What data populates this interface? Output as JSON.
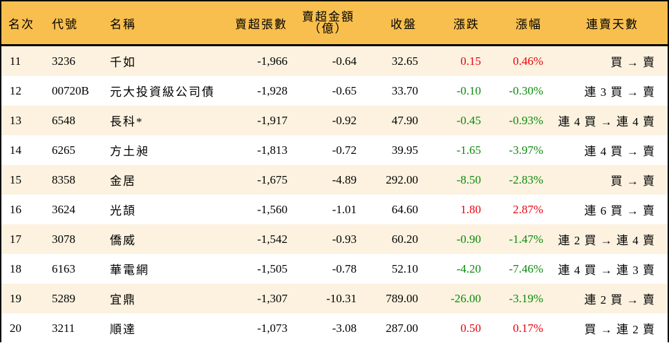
{
  "colors": {
    "header_bg": "#F8BF4E",
    "row_odd_bg": "#FCF2DF",
    "row_even_bg": "#FFFFFF",
    "up": "#E8000B",
    "down": "#0A8A0A",
    "border": "#000000"
  },
  "header": {
    "rank": "名次",
    "code": "代號",
    "name": "名稱",
    "net_sell_volume": "賣超張數",
    "net_sell_amount_line1": "賣超金額",
    "net_sell_amount_line2": "（億）",
    "close": "收盤",
    "change": "漲跌",
    "change_pct": "漲幅",
    "consecutive_days": "連賣天數"
  },
  "rows": [
    {
      "rank": "11",
      "code": "3236",
      "name": "千如",
      "volume": "-1,966",
      "amount": "-0.64",
      "close": "32.65",
      "change": "0.15",
      "pct": "0.46%",
      "trend": "up",
      "days": "買 → 賣"
    },
    {
      "rank": "12",
      "code": "00720B",
      "name": "元大投資級公司債",
      "volume": "-1,928",
      "amount": "-0.65",
      "close": "33.70",
      "change": "-0.10",
      "pct": "-0.30%",
      "trend": "down",
      "days": "連 3 買 → 賣"
    },
    {
      "rank": "13",
      "code": "6548",
      "name": "長科*",
      "volume": "-1,917",
      "amount": "-0.92",
      "close": "47.90",
      "change": "-0.45",
      "pct": "-0.93%",
      "trend": "down",
      "days": "連 4 買 → 連 4 賣"
    },
    {
      "rank": "14",
      "code": "6265",
      "name": "方土昶",
      "volume": "-1,813",
      "amount": "-0.72",
      "close": "39.95",
      "change": "-1.65",
      "pct": "-3.97%",
      "trend": "down",
      "days": "連 4 買 → 賣"
    },
    {
      "rank": "15",
      "code": "8358",
      "name": "金居",
      "volume": "-1,675",
      "amount": "-4.89",
      "close": "292.00",
      "change": "-8.50",
      "pct": "-2.83%",
      "trend": "down",
      "days": "買 → 賣"
    },
    {
      "rank": "16",
      "code": "3624",
      "name": "光頡",
      "volume": "-1,560",
      "amount": "-1.01",
      "close": "64.60",
      "change": "1.80",
      "pct": "2.87%",
      "trend": "up",
      "days": "連 6 買 → 賣"
    },
    {
      "rank": "17",
      "code": "3078",
      "name": "僑威",
      "volume": "-1,542",
      "amount": "-0.93",
      "close": "60.20",
      "change": "-0.90",
      "pct": "-1.47%",
      "trend": "down",
      "days": "連 2 買 → 連 4 賣"
    },
    {
      "rank": "18",
      "code": "6163",
      "name": "華電網",
      "volume": "-1,505",
      "amount": "-0.78",
      "close": "52.10",
      "change": "-4.20",
      "pct": "-7.46%",
      "trend": "down",
      "days": "連 4 買 → 連 3 賣"
    },
    {
      "rank": "19",
      "code": "5289",
      "name": "宜鼎",
      "volume": "-1,307",
      "amount": "-10.31",
      "close": "789.00",
      "change": "-26.00",
      "pct": "-3.19%",
      "trend": "down",
      "days": "連 2 買 → 賣"
    },
    {
      "rank": "20",
      "code": "3211",
      "name": "順達",
      "volume": "-1,073",
      "amount": "-3.08",
      "close": "287.00",
      "change": "0.50",
      "pct": "0.17%",
      "trend": "up",
      "days": "買 → 連 2 賣"
    }
  ]
}
